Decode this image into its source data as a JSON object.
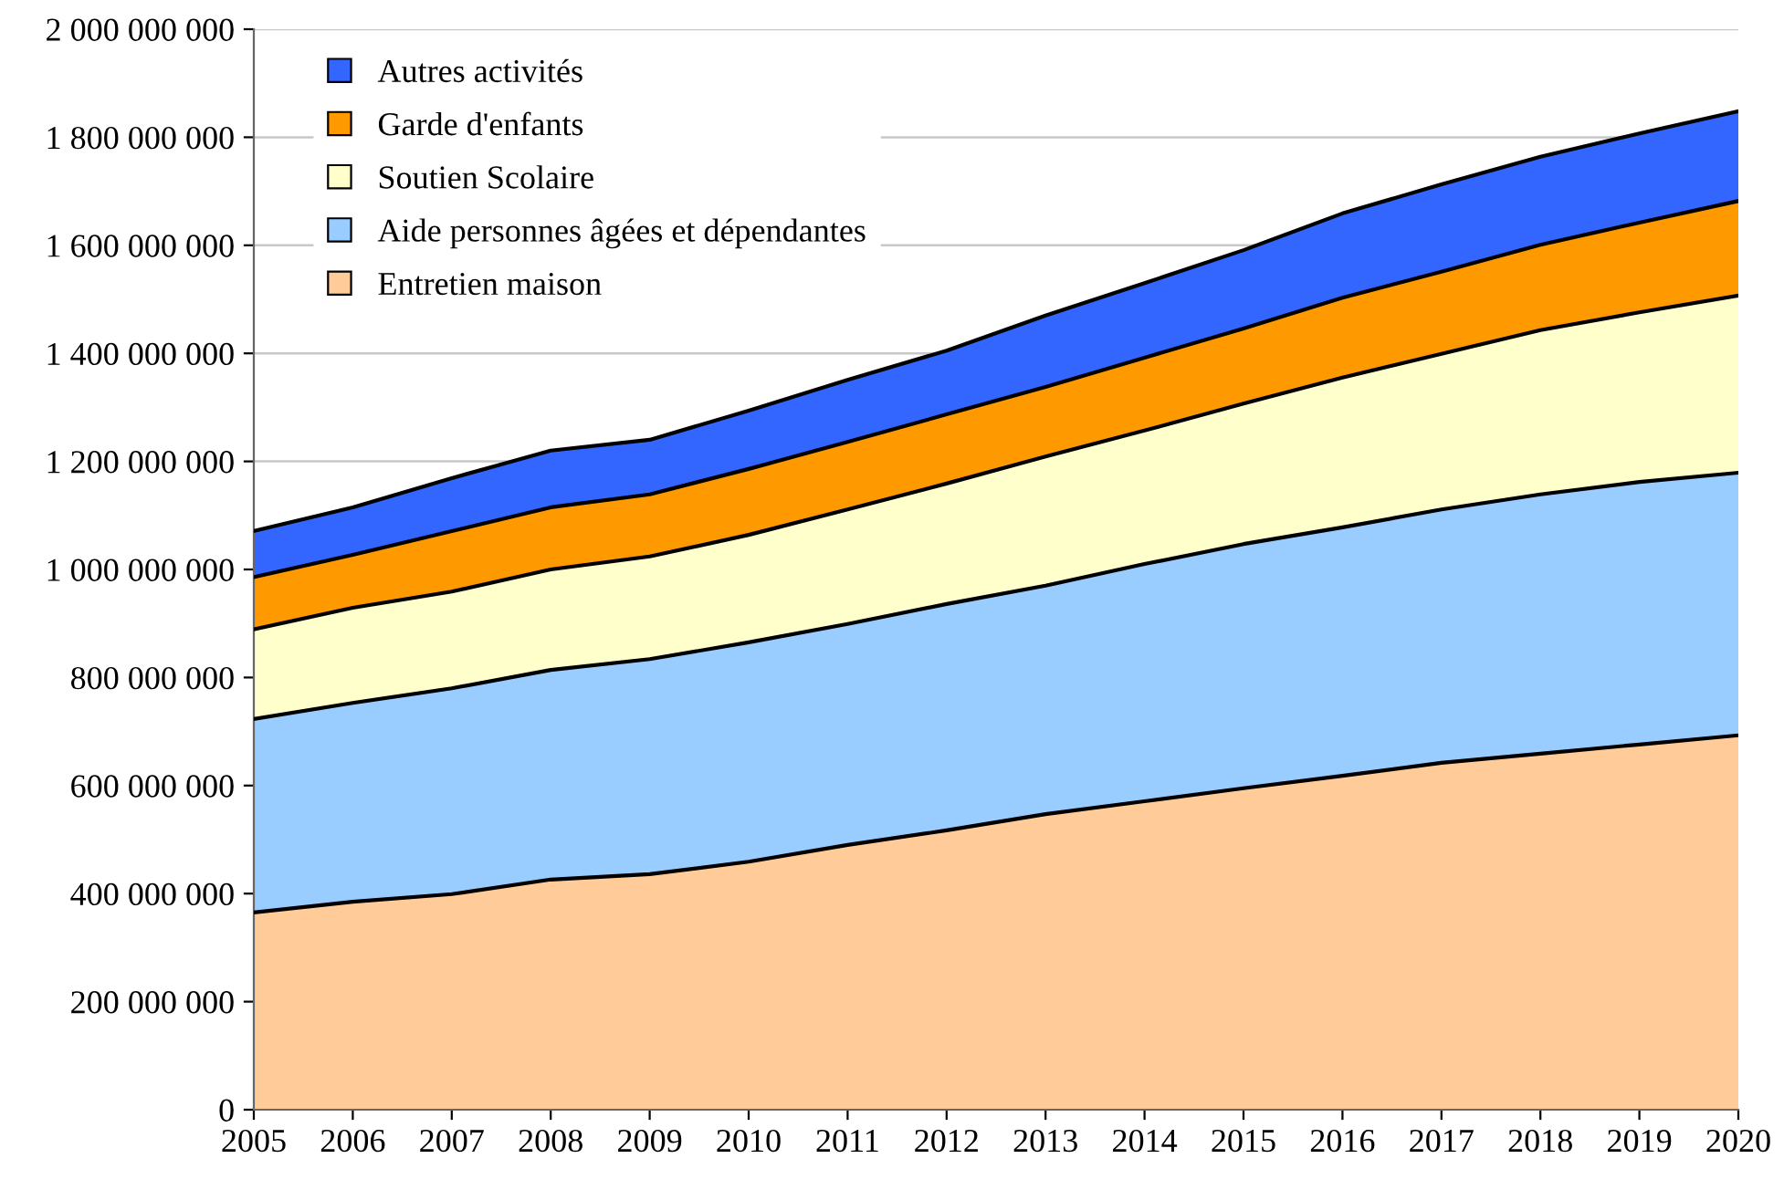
{
  "chart_data": {
    "type": "area",
    "stacked": true,
    "x": [
      2005,
      2006,
      2007,
      2008,
      2009,
      2010,
      2011,
      2012,
      2013,
      2014,
      2015,
      2016,
      2017,
      2018,
      2019,
      2020
    ],
    "series": [
      {
        "name": "Entretien maison",
        "color": "#ffcc99",
        "values": [
          365000000,
          385000000,
          399000000,
          426000000,
          436000000,
          459000000,
          490000000,
          517000000,
          547000000,
          571000000,
          595000000,
          618000000,
          642000000,
          659000000,
          676000000,
          693000000
        ]
      },
      {
        "name": "Aide personnes âgées et dépendantes",
        "color": "#99ccff",
        "values": [
          358000000,
          368000000,
          381000000,
          388000000,
          398000000,
          406000000,
          409000000,
          419000000,
          423000000,
          439000000,
          452000000,
          460000000,
          469000000,
          480000000,
          486000000,
          486000000
        ]
      },
      {
        "name": "Soutien Scolaire",
        "color": "#ffffcc",
        "values": [
          166000000,
          176000000,
          179000000,
          186000000,
          190000000,
          199000000,
          212000000,
          223000000,
          239000000,
          247000000,
          260000000,
          277000000,
          288000000,
          304000000,
          314000000,
          328000000
        ]
      },
      {
        "name": "Garde d'enfants",
        "color": "#ff9900",
        "values": [
          97000000,
          98000000,
          112000000,
          115000000,
          115000000,
          122000000,
          125000000,
          128000000,
          129000000,
          135000000,
          139000000,
          148000000,
          152000000,
          158000000,
          166000000,
          175000000
        ]
      },
      {
        "name": "Autres activités",
        "color": "#3366ff",
        "values": [
          85000000,
          88000000,
          98000000,
          105000000,
          101000000,
          108000000,
          115000000,
          118000000,
          132000000,
          138000000,
          145000000,
          156000000,
          162000000,
          163000000,
          165000000,
          166000000
        ]
      }
    ],
    "xlim": [
      2005,
      2020
    ],
    "xticks": [
      2005,
      2006,
      2007,
      2008,
      2009,
      2010,
      2011,
      2012,
      2013,
      2014,
      2015,
      2016,
      2017,
      2018,
      2019,
      2020
    ],
    "ylim": [
      0,
      2000000000
    ],
    "yticks": [
      0,
      {
        "value": 200000000,
        "label": "200 000 000"
      },
      {
        "value": 400000000,
        "label": "400 000 000"
      },
      {
        "value": 600000000,
        "label": "600 000 000"
      },
      {
        "value": 800000000,
        "label": "800 000 000"
      },
      {
        "value": 1000000000,
        "label": "1 000 000 000"
      },
      {
        "value": 1200000000,
        "label": "1 200 000 000"
      },
      {
        "value": 1400000000,
        "label": "1 400 000 000"
      },
      {
        "value": 1600000000,
        "label": "1 600 000 000"
      },
      {
        "value": 1800000000,
        "label": "1 800 000 000"
      },
      {
        "value": 2000000000,
        "label": "2 000 000 000"
      }
    ],
    "grid": "y",
    "legend": "top left"
  }
}
